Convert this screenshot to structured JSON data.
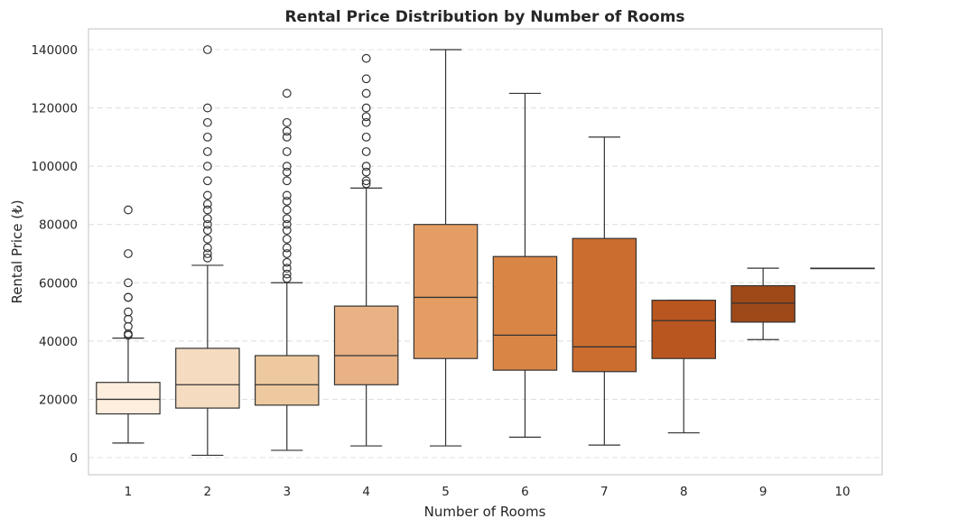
{
  "chart_data": {
    "type": "box",
    "title": "Rental Price Distribution by Number of Rooms",
    "xlabel": "Number of Rooms",
    "ylabel": "Rental Price (₺)",
    "ylim": [
      -6000,
      147000
    ],
    "yticks": [
      0,
      20000,
      40000,
      60000,
      80000,
      100000,
      120000,
      140000
    ],
    "grid": "y-dashed",
    "legend": "none",
    "categories": [
      "1",
      "2",
      "3",
      "4",
      "5",
      "6",
      "7",
      "8",
      "9",
      "10"
    ],
    "boxes": [
      {
        "category": "1",
        "whisker_low": 5000,
        "q1": 15000,
        "median": 20000,
        "q3": 25800,
        "whisker_high": 41000,
        "color": "#fdeedd",
        "outliers": [
          42000,
          42500,
          45000,
          47500,
          50000,
          55000,
          55000,
          60000,
          70000,
          85000
        ]
      },
      {
        "category": "2",
        "whisker_low": 800,
        "q1": 17000,
        "median": 25000,
        "q3": 37500,
        "whisker_high": 66000,
        "color": "#f5dcc0",
        "outliers": [
          68500,
          70000,
          72000,
          75000,
          78000,
          80000,
          82000,
          85000,
          87000,
          90000,
          95000,
          100000,
          105000,
          110000,
          115000,
          120000,
          140000
        ]
      },
      {
        "category": "3",
        "whisker_low": 2500,
        "q1": 18000,
        "median": 25000,
        "q3": 35000,
        "whisker_high": 60000,
        "color": "#eec9a0",
        "outliers": [
          61500,
          63000,
          65000,
          67000,
          70000,
          72000,
          75000,
          78000,
          80000,
          82000,
          85000,
          88000,
          90000,
          95000,
          98000,
          100000,
          105000,
          110000,
          112000,
          115000,
          125000
        ]
      },
      {
        "category": "4",
        "whisker_low": 4000,
        "q1": 25000,
        "median": 35000,
        "q3": 52000,
        "whisker_high": 92500,
        "color": "#e8b284",
        "outliers": [
          94000,
          95000,
          98000,
          100000,
          105000,
          110000,
          115000,
          117000,
          120000,
          125000,
          130000,
          137000
        ]
      },
      {
        "category": "5",
        "whisker_low": 4000,
        "q1": 34000,
        "median": 55000,
        "q3": 80000,
        "whisker_high": 140000,
        "color": "#e49e63",
        "outliers": []
      },
      {
        "category": "6",
        "whisker_low": 7000,
        "q1": 30000,
        "median": 42000,
        "q3": 69000,
        "whisker_high": 125000,
        "color": "#d98546",
        "outliers": []
      },
      {
        "category": "7",
        "whisker_low": 4300,
        "q1": 29500,
        "median": 38000,
        "q3": 75200,
        "whisker_high": 110000,
        "color": "#cc6d30",
        "outliers": []
      },
      {
        "category": "8",
        "whisker_low": 8500,
        "q1": 34000,
        "median": 47000,
        "q3": 54000,
        "whisker_high": 54000,
        "color": "#b9561f",
        "outliers": []
      },
      {
        "category": "9",
        "whisker_low": 40500,
        "q1": 46500,
        "median": 53000,
        "q3": 59000,
        "whisker_high": 65000,
        "color": "#9f4919",
        "outliers": []
      },
      {
        "category": "10",
        "whisker_low": 65000,
        "q1": 65000,
        "median": 65000,
        "q3": 65000,
        "whisker_high": 65000,
        "color": "#8a3e15",
        "outliers": []
      }
    ]
  }
}
